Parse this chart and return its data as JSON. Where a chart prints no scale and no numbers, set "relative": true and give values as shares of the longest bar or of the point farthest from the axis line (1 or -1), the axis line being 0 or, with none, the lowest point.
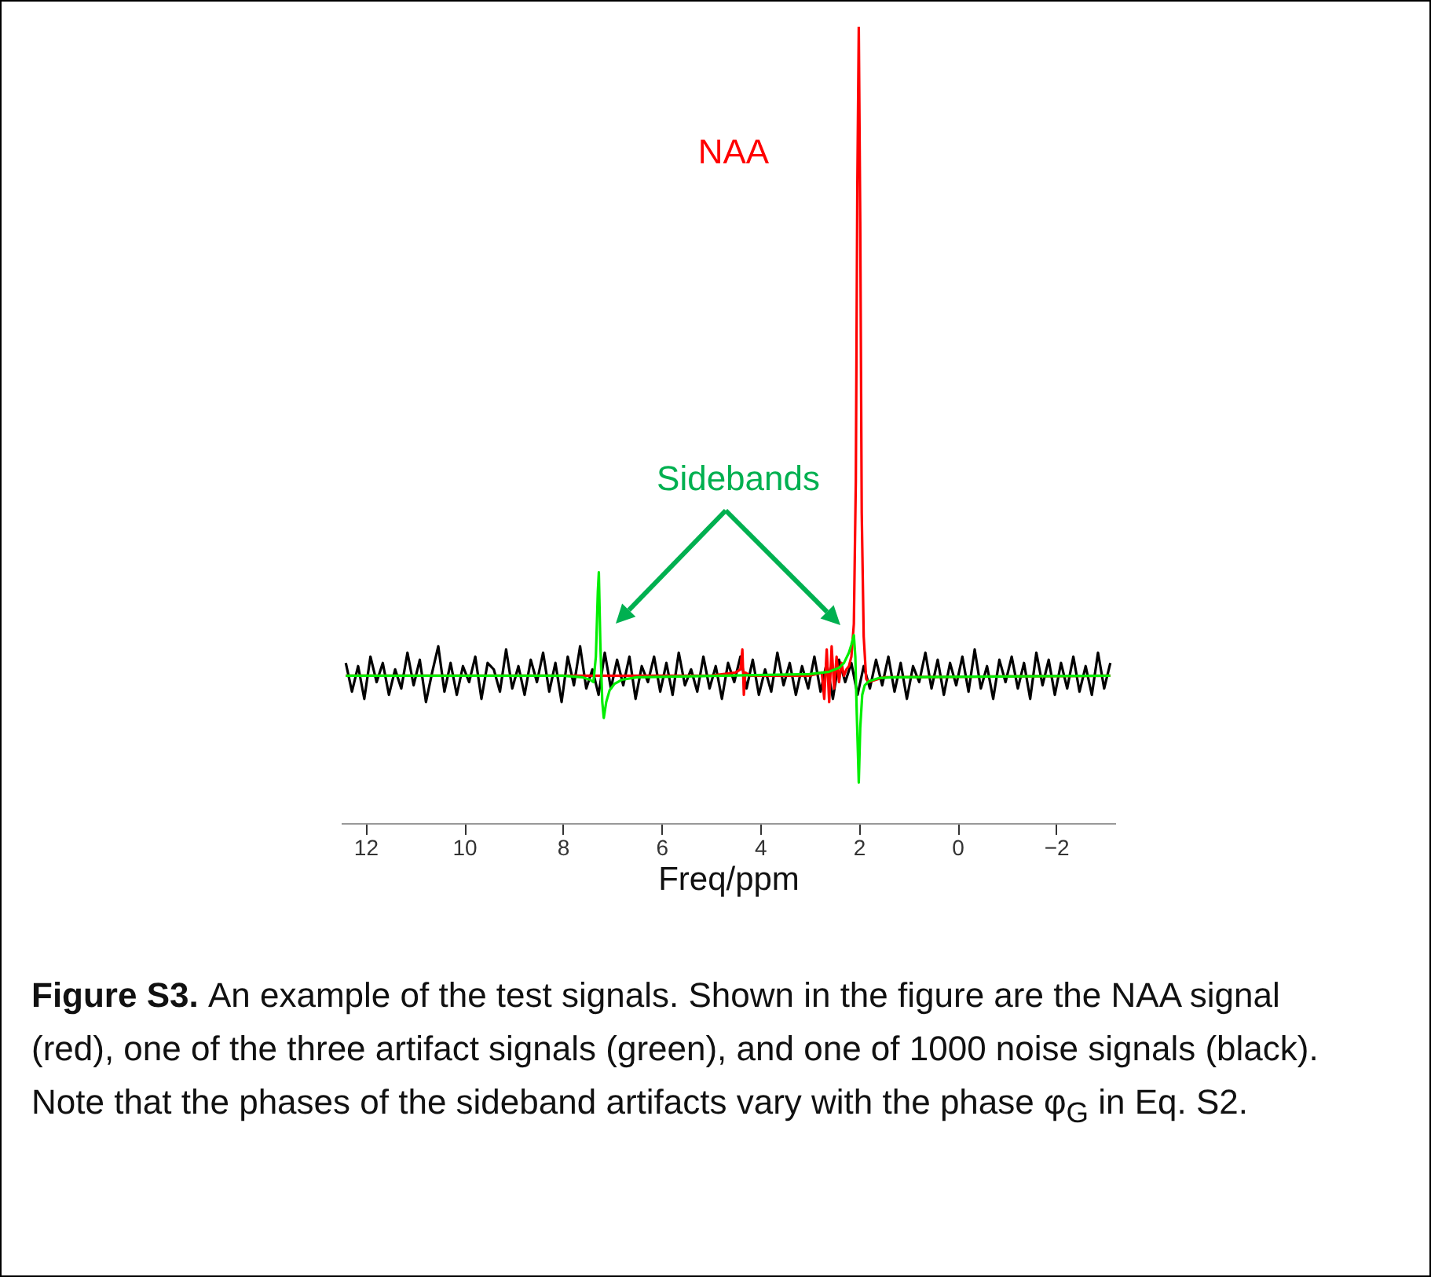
{
  "chart_data": {
    "type": "line",
    "relative": true,
    "xlabel": "Freq/ppm",
    "xlim": [
      12.5,
      -3.2
    ],
    "xticks": [
      12,
      10,
      8,
      6,
      4,
      2,
      0,
      -2
    ],
    "annotations": [
      "NAA",
      "Sidebands",
      "Figure S3.",
      "An example of the test signals. Shown in the figure are the NAA signal (red), one of the three artifact signals (green), and one of 1000 noise signals (black). Note that the phases of the sideband artifacts vary with the phase φ$_{G}$ in Eq. S2."
    ],
    "series": [
      {
        "color": "#000000",
        "x": [
          12.4,
          12.275,
          12.15,
          12.025,
          11.9,
          11.775,
          11.65,
          11.525,
          11.4,
          11.275,
          11.15,
          11.025,
          10.9,
          10.775,
          10.65,
          10.525,
          10.4,
          10.275,
          10.15,
          10.025,
          9.9,
          9.775,
          9.65,
          9.525,
          9.4,
          9.275,
          9.15,
          9.025,
          8.9,
          8.775,
          8.65,
          8.525,
          8.4,
          8.275,
          8.15,
          8.025,
          7.9,
          7.775,
          7.65,
          7.525,
          7.4,
          7.275,
          7.15,
          7.025,
          6.9,
          6.775,
          6.65,
          6.525,
          6.4,
          6.275,
          6.15,
          6.025,
          5.9,
          5.775,
          5.65,
          5.525,
          5.4,
          5.275,
          5.15,
          5.025,
          4.9,
          4.775,
          4.65,
          4.525,
          4.4,
          4.275,
          4.15,
          4.025,
          3.9,
          3.775,
          3.65,
          3.525,
          3.4,
          3.275,
          3.15,
          3.025,
          2.9,
          2.775,
          2.65,
          2.525,
          2.4,
          2.275,
          2.15,
          2.025,
          1.9,
          1.775,
          1.65,
          1.525,
          1.4,
          1.275,
          1.15,
          1.025,
          0.9,
          0.775,
          0.65,
          0.525,
          0.4,
          0.275,
          0.15,
          0.025,
          -0.1,
          -0.225,
          -0.35,
          -0.475,
          -0.6,
          -0.725,
          -0.85,
          -0.975,
          -1.1,
          -1.225,
          -1.35,
          -1.475,
          -1.6,
          -1.725,
          -1.85,
          -1.975,
          -2.1,
          -2.225,
          -2.35,
          -2.475,
          -2.6,
          -2.725,
          -2.85,
          -2.975,
          -3.1
        ],
        "values": [
          0.201,
          0.165,
          0.197,
          0.156,
          0.209,
          0.177,
          0.201,
          0.161,
          0.193,
          0.169,
          0.214,
          0.173,
          0.205,
          0.152,
          0.189,
          0.222,
          0.165,
          0.201,
          0.161,
          0.197,
          0.177,
          0.209,
          0.156,
          0.201,
          0.193,
          0.165,
          0.218,
          0.169,
          0.197,
          0.161,
          0.205,
          0.177,
          0.214,
          0.165,
          0.201,
          0.152,
          0.209,
          0.173,
          0.222,
          0.169,
          0.193,
          0.161,
          0.214,
          0.169,
          0.205,
          0.173,
          0.209,
          0.156,
          0.197,
          0.177,
          0.209,
          0.165,
          0.201,
          0.161,
          0.214,
          0.173,
          0.193,
          0.165,
          0.209,
          0.169,
          0.197,
          0.156,
          0.201,
          0.177,
          0.209,
          0.169,
          0.205,
          0.161,
          0.193,
          0.165,
          0.214,
          0.173,
          0.201,
          0.161,
          0.197,
          0.169,
          0.209,
          0.165,
          0.201,
          0.156,
          0.205,
          0.177,
          0.201,
          0.161,
          0.197,
          0.169,
          0.205,
          0.173,
          0.209,
          0.165,
          0.201,
          0.156,
          0.197,
          0.177,
          0.214,
          0.169,
          0.205,
          0.161,
          0.201,
          0.173,
          0.209,
          0.165,
          0.218,
          0.169,
          0.197,
          0.156,
          0.205,
          0.177,
          0.209,
          0.169,
          0.201,
          0.156,
          0.214,
          0.173,
          0.205,
          0.161,
          0.201,
          0.169,
          0.209,
          0.165,
          0.197,
          0.161,
          0.214,
          0.169,
          0.201
        ]
      },
      {
        "color": "#ff0000",
        "x": [
          12.4,
          5,
          4.5,
          4.4,
          4.36,
          4.33,
          4.3,
          4.2,
          3,
          2.75,
          2.7,
          2.65,
          2.6,
          2.55,
          2.5,
          2.45,
          2.4,
          2.35,
          2.3,
          2.25,
          2.2,
          2.15,
          2.1,
          2.06,
          2.03,
          2.0,
          1.97,
          1.94,
          1.9,
          1.85,
          1.8,
          1.5,
          -3.1
        ],
        "values": [
          0.185,
          0.185,
          0.189,
          0.193,
          0.218,
          0.161,
          0.189,
          0.185,
          0.185,
          0.189,
          0.156,
          0.218,
          0.152,
          0.222,
          0.169,
          0.209,
          0.177,
          0.201,
          0.185,
          0.193,
          0.197,
          0.209,
          0.25,
          0.429,
          0.796,
          1.0,
          0.755,
          0.389,
          0.234,
          0.181,
          0.177,
          0.183,
          0.185
        ]
      },
      {
        "color": "#00ee00",
        "x": [
          12.4,
          8,
          7.6,
          7.45,
          7.38,
          7.33,
          7.29,
          7.27,
          7.24,
          7.2,
          7.17,
          7.12,
          7.05,
          6.95,
          6.8,
          6.5,
          3,
          2.6,
          2.4,
          2.3,
          2.2,
          2.15,
          2.1,
          2.07,
          2.04,
          2.0,
          1.97,
          1.93,
          1.88,
          1.8,
          1.6,
          1.3,
          -3.1
        ],
        "values": [
          0.185,
          0.185,
          0.183,
          0.18,
          0.177,
          0.209,
          0.291,
          0.315,
          0.226,
          0.152,
          0.132,
          0.152,
          0.167,
          0.175,
          0.18,
          0.183,
          0.187,
          0.19,
          0.195,
          0.201,
          0.214,
          0.224,
          0.236,
          0.209,
          0.136,
          0.051,
          0.12,
          0.161,
          0.173,
          0.178,
          0.182,
          0.183,
          0.185
        ]
      }
    ]
  }
}
